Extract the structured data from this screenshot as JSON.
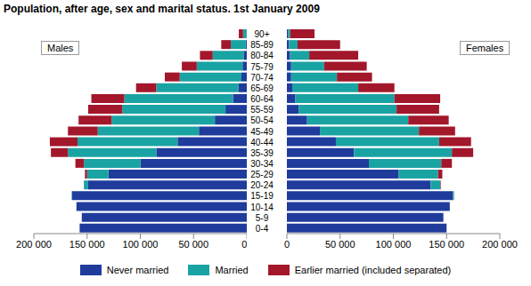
{
  "chart_data": {
    "type": "bar",
    "orientation": "horizontal",
    "stacked": true,
    "legend": "bottom",
    "title": "Population, after age, sex and marital status. 1st January 2009",
    "groups": [
      "Males",
      "Females"
    ],
    "categories": [
      "0-4",
      "5-9",
      "10-14",
      "15-19",
      "20-24",
      "25-29",
      "30-34",
      "35-39",
      "40-44",
      "45-49",
      "50-54",
      "55-59",
      "60-64",
      "65-69",
      "70-74",
      "75-79",
      "80-84",
      "85-89",
      "90+"
    ],
    "xlim": [
      0,
      200000
    ],
    "xticks": [
      {
        "value": 200000,
        "label": "200 000"
      },
      {
        "value": 150000,
        "label": "150 000"
      },
      {
        "value": 100000,
        "label": "100 000"
      },
      {
        "value": 50000,
        "label": "50 000"
      },
      0
    ],
    "series": [
      {
        "name": "Never married",
        "color": "#1f3c9c",
        "values": [
          [
            157000,
            155000,
            160000,
            164000,
            149000,
            130000,
            100000,
            85000,
            65000,
            45000,
            30000,
            20000,
            13000,
            8000,
            5000,
            4000,
            3000,
            1000,
            500
          ],
          [
            150000,
            147000,
            153000,
            156000,
            135000,
            105000,
            77000,
            63000,
            46000,
            31000,
            19000,
            11000,
            8000,
            5000,
            4000,
            4000,
            3000,
            2000,
            1000
          ]
        ]
      },
      {
        "name": "Married",
        "color": "#1aa3a3",
        "values": [
          [
            0,
            0,
            0,
            500,
            4000,
            20000,
            53000,
            83000,
            94000,
            95000,
            97000,
            97000,
            102000,
            77000,
            58000,
            43000,
            29000,
            14000,
            3000
          ],
          [
            0,
            0,
            0,
            1000,
            9000,
            37000,
            68000,
            92000,
            97000,
            93000,
            95000,
            92000,
            93000,
            62000,
            43000,
            31000,
            18000,
            8000,
            2000
          ]
        ]
      },
      {
        "name": "Earlier married (included separated)",
        "color": "#a3172b",
        "values": [
          [
            0,
            0,
            0,
            0,
            0,
            2000,
            8000,
            16000,
            26000,
            28000,
            31000,
            32000,
            31000,
            19000,
            14000,
            14000,
            12000,
            9000,
            4000
          ],
          [
            0,
            0,
            0,
            0,
            500,
            4000,
            10000,
            20000,
            30000,
            34000,
            38000,
            40000,
            43000,
            34000,
            33000,
            40000,
            46000,
            40000,
            23000
          ]
        ]
      }
    ]
  }
}
